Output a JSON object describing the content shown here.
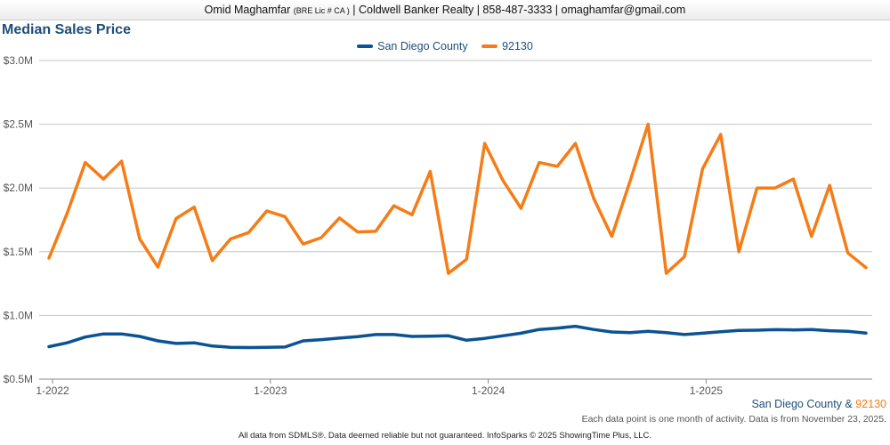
{
  "header": {
    "agent_name": "Omid Maghamfar",
    "license": "(BRE Lic # CA )",
    "company": "Coldwell Banker Realty",
    "phone": "858-487-3333",
    "email": "omaghamfar@gmail.com",
    "separator": "|"
  },
  "colors": {
    "county": "#0b5394",
    "zip": "#f57c16",
    "title": "#1e4e7a",
    "grid": "#c4c4c4"
  },
  "source_line": {
    "label1": "San Diego County",
    "amp": "&",
    "label2": "92130"
  },
  "note": "Each data point is one month of activity. Data is from November 23, 2025.",
  "footer": "All data from SDMLS®. Data deemed reliable but not guaranteed. InfoSparks © 2025 ShowingTime Plus, LLC.",
  "chart_data": {
    "type": "line",
    "title": "Median Sales Price",
    "xlabel": "",
    "ylabel": "",
    "ylim": [
      0.5,
      3.0
    ],
    "yticks": [
      0.5,
      1.0,
      1.5,
      2.0,
      2.5,
      3.0
    ],
    "ytick_labels": [
      "$0.5M",
      "$1.0M",
      "$1.5M",
      "$2.0M",
      "$2.5M",
      "$3.0M"
    ],
    "xticks": [
      {
        "index": 0,
        "label": "1-2022"
      },
      {
        "index": 12,
        "label": "1-2023"
      },
      {
        "index": 24,
        "label": "1-2024"
      },
      {
        "index": 36,
        "label": "1-2025"
      }
    ],
    "legend_position": "top-center",
    "x": [
      "1-2022",
      "2-2022",
      "3-2022",
      "4-2022",
      "5-2022",
      "6-2022",
      "7-2022",
      "8-2022",
      "9-2022",
      "10-2022",
      "11-2022",
      "12-2022",
      "1-2023",
      "2-2023",
      "3-2023",
      "4-2023",
      "5-2023",
      "6-2023",
      "7-2023",
      "8-2023",
      "9-2023",
      "10-2023",
      "11-2023",
      "12-2023",
      "1-2024",
      "2-2024",
      "3-2024",
      "4-2024",
      "5-2024",
      "6-2024",
      "7-2024",
      "8-2024",
      "9-2024",
      "10-2024",
      "11-2024",
      "12-2024",
      "1-2025",
      "2-2025",
      "3-2025",
      "4-2025",
      "5-2025",
      "6-2025",
      "7-2025",
      "8-2025",
      "9-2025",
      "10-2025"
    ],
    "series": [
      {
        "name": "San Diego County",
        "color": "#0b5394",
        "values": [
          0.755,
          0.785,
          0.83,
          0.855,
          0.855,
          0.835,
          0.8,
          0.78,
          0.785,
          0.76,
          0.75,
          0.748,
          0.75,
          0.752,
          0.8,
          0.81,
          0.822,
          0.833,
          0.85,
          0.85,
          0.835,
          0.837,
          0.84,
          0.805,
          0.82,
          0.84,
          0.86,
          0.89,
          0.9,
          0.915,
          0.89,
          0.87,
          0.865,
          0.875,
          0.865,
          0.85,
          0.86,
          0.872,
          0.883,
          0.884,
          0.888,
          0.886,
          0.89,
          0.88,
          0.876,
          0.862
        ]
      },
      {
        "name": "92130",
        "color": "#f57c16",
        "values": [
          1.45,
          1.8,
          2.2,
          2.07,
          2.21,
          1.6,
          1.38,
          1.76,
          1.85,
          1.43,
          1.6,
          1.65,
          1.82,
          1.775,
          1.56,
          1.61,
          1.765,
          1.655,
          1.66,
          1.86,
          1.79,
          2.13,
          1.33,
          1.44,
          2.35,
          2.06,
          1.84,
          2.2,
          2.17,
          2.35,
          1.92,
          1.62,
          2.05,
          2.5,
          1.33,
          1.46,
          2.15,
          2.42,
          1.5,
          2.0,
          2.0,
          2.07,
          1.62,
          2.02,
          1.49,
          1.375
        ]
      }
    ]
  }
}
